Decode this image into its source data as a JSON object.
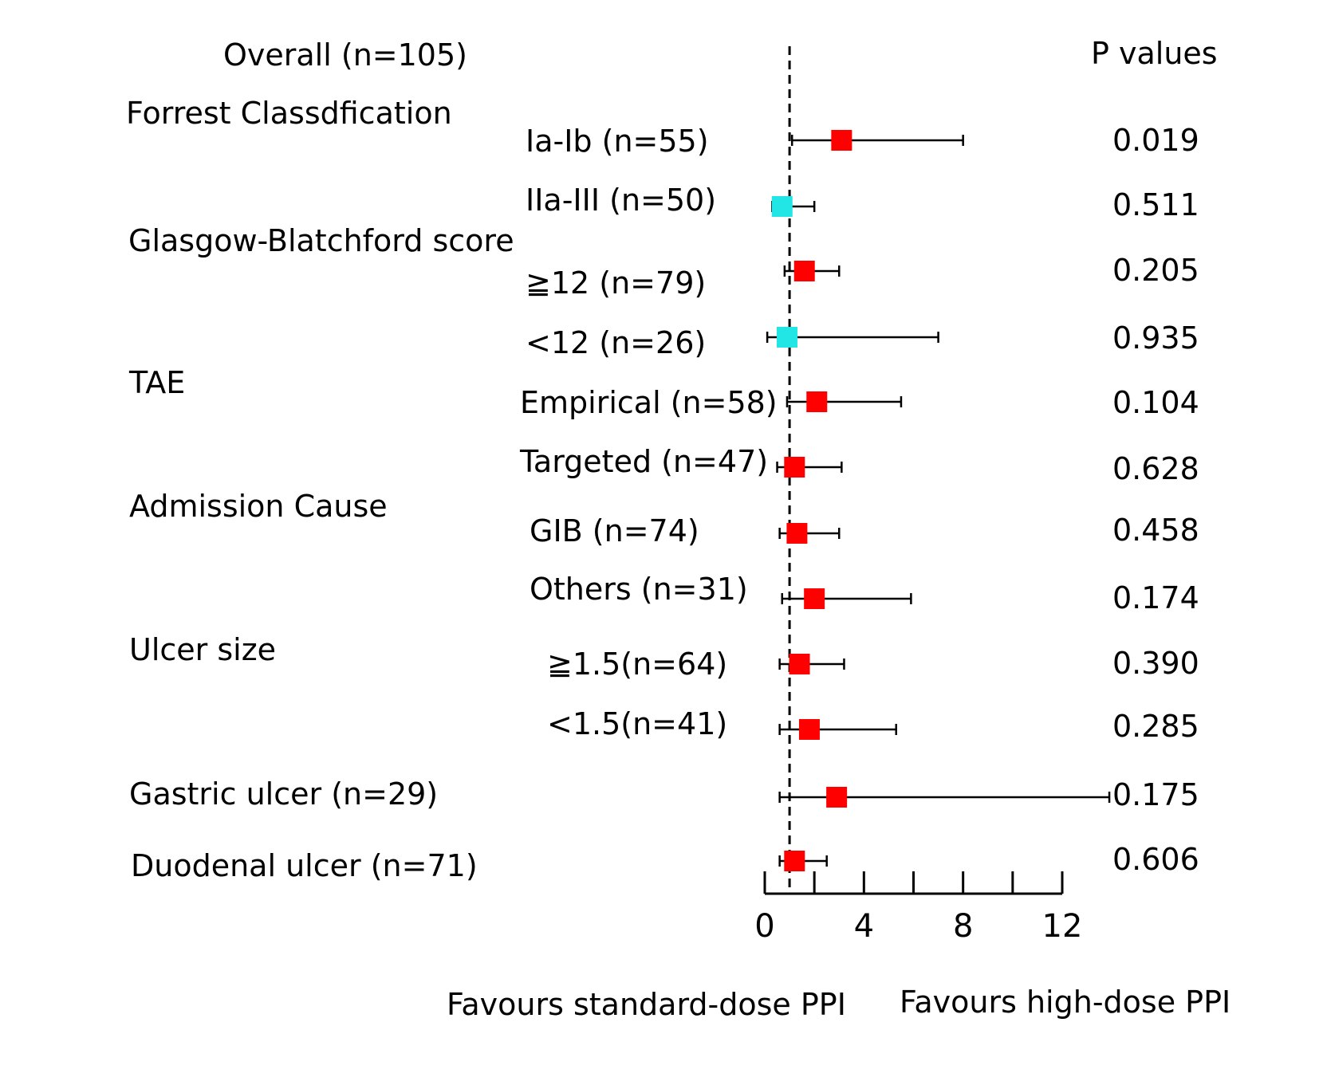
{
  "chart_data": {
    "type": "forest",
    "overall_label": "Overall (n=105)",
    "pvalue_header": "P values",
    "reference_line": 1,
    "xlim": [
      0,
      12
    ],
    "x_ticks": [
      0,
      2,
      4,
      6,
      8,
      10,
      12
    ],
    "x_tick_labels": [
      "0",
      "4",
      "8",
      "12"
    ],
    "x_tick_label_values": [
      0,
      4,
      8,
      12
    ],
    "left_direction_label": "Favours standard-dose PPI",
    "right_direction_label": "Favours high-dose PPI",
    "groups": [
      {
        "label": "Forrest Classdfication"
      },
      {
        "label": "Glasgow-Blatchford score"
      },
      {
        "label": "TAE"
      },
      {
        "label": "Admission Cause"
      },
      {
        "label": "Ulcer size"
      }
    ],
    "rows": [
      {
        "label": "Ia-Ib (n=55)",
        "estimate": 3.1,
        "lower": 1.1,
        "upper": 8.0,
        "p": "0.019",
        "color": "#ff0000",
        "p_color": "#e8262b"
      },
      {
        "label": "IIa-III (n=50)",
        "estimate": 0.7,
        "lower": 0.3,
        "upper": 2.0,
        "p": "0.511",
        "color": "#22e5e5",
        "p_color": "#000000"
      },
      {
        "label": "≧12 (n=79)",
        "estimate": 1.6,
        "lower": 0.8,
        "upper": 3.0,
        "p": "0.205",
        "color": "#ff0000",
        "p_color": "#000000"
      },
      {
        "label": "<12 (n=26)",
        "estimate": 0.9,
        "lower": 0.1,
        "upper": 7.0,
        "p": "0.935",
        "color": "#22e5e5",
        "p_color": "#000000"
      },
      {
        "label": "Empirical (n=58)",
        "estimate": 2.1,
        "lower": 0.9,
        "upper": 5.5,
        "p": "0.104",
        "color": "#ff0000",
        "p_color": "#000000"
      },
      {
        "label": "Targeted (n=47)",
        "estimate": 1.2,
        "lower": 0.5,
        "upper": 3.1,
        "p": "0.628",
        "color": "#ff0000",
        "p_color": "#000000"
      },
      {
        "label": "GIB (n=74)",
        "estimate": 1.3,
        "lower": 0.6,
        "upper": 3.0,
        "p": "0.458",
        "color": "#ff0000",
        "p_color": "#000000"
      },
      {
        "label": "Others (n=31)",
        "estimate": 2.0,
        "lower": 0.7,
        "upper": 5.9,
        "p": "0.174",
        "color": "#ff0000",
        "p_color": "#000000"
      },
      {
        "label": "≧1.5(n=64)",
        "estimate": 1.4,
        "lower": 0.6,
        "upper": 3.2,
        "p": "0.390",
        "color": "#ff0000",
        "p_color": "#000000"
      },
      {
        "label": "<1.5(n=41)",
        "estimate": 1.8,
        "lower": 0.6,
        "upper": 5.3,
        "p": "0.285",
        "color": "#ff0000",
        "p_color": "#000000"
      },
      {
        "label": "Gastric ulcer (n=29)",
        "estimate": 2.9,
        "lower": 0.6,
        "upper": 13.9,
        "p": "0.175",
        "color": "#ff0000",
        "p_color": "#000000"
      },
      {
        "label": "Duodenal ulcer (n=71)",
        "estimate": 1.2,
        "lower": 0.6,
        "upper": 2.5,
        "p": "0.606",
        "color": "#ff0000",
        "p_color": "#000000"
      }
    ]
  }
}
